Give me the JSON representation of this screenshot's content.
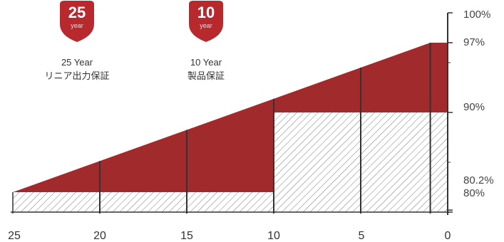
{
  "warranties": [
    {
      "number": "25",
      "unit": "year",
      "label_line1": "25 Year",
      "label_line2": "リニア出力保証"
    },
    {
      "number": "10",
      "unit": "year",
      "label_line1": "10 Year",
      "label_line2": "製品保証"
    }
  ],
  "colors": {
    "accent": "#a12a2c",
    "badge": "#b7292d",
    "hatch": "#555555",
    "axis": "#333333"
  },
  "chart_data": {
    "type": "area",
    "title": "",
    "xlabel": "",
    "ylabel": "",
    "x_ticks": [
      "25",
      "20",
      "15",
      "10",
      "5",
      "0"
    ],
    "x_range": [
      25,
      0
    ],
    "y_ticks": [
      "100%",
      "97%",
      "90%",
      "80.2%",
      "80%"
    ],
    "y_range": [
      80,
      100
    ],
    "series": [
      {
        "name": "",
        "points": [
          {
            "x": 25,
            "y": 82
          },
          {
            "x": 1,
            "y": 97
          }
        ]
      },
      {
        "name": "",
        "points": [
          {
            "x": 25,
            "y": 82
          },
          {
            "x": 10,
            "y": 82
          },
          {
            "x": 10,
            "y": 90
          },
          {
            "x": 0,
            "y": 90
          }
        ]
      }
    ],
    "grid": false,
    "legend": "none"
  }
}
